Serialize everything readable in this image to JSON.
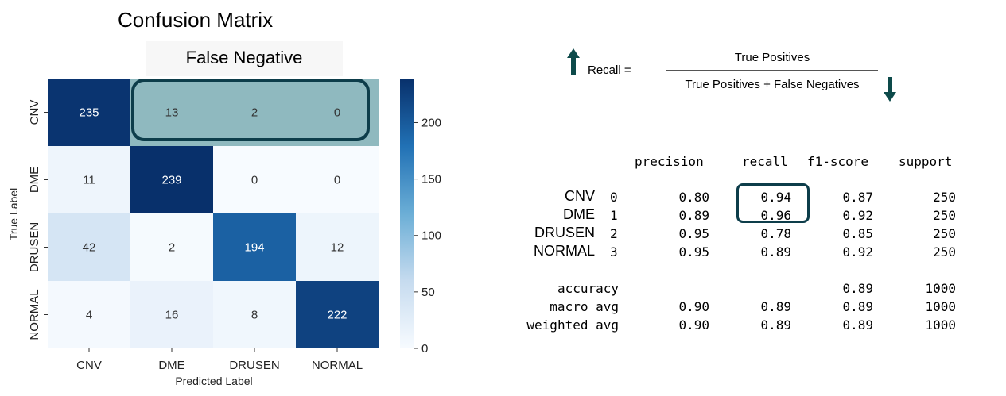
{
  "page": {
    "title": "Confusion Matrix",
    "false_negative_label": "False Negative"
  },
  "formula": {
    "lhs": "Recall =",
    "numerator": "True Positives",
    "denominator": "True Positives + False Negatives"
  },
  "colors": {
    "heatmap_low": "#f7fbff",
    "heatmap_high": "#08306b",
    "highlight_border": "#0d3d4a",
    "highlight_fill": "#8fb9bf",
    "arrow": "#0d4a4a"
  },
  "chart_data": {
    "type": "heatmap",
    "title": "",
    "xlabel": "Predicted Label",
    "ylabel": "True Label",
    "x_categories": [
      "CNV",
      "DME",
      "DRUSEN",
      "NORMAL"
    ],
    "y_categories": [
      "CNV",
      "DME",
      "DRUSEN",
      "NORMAL"
    ],
    "values": [
      [
        235,
        13,
        2,
        0
      ],
      [
        11,
        239,
        0,
        0
      ],
      [
        42,
        2,
        194,
        12
      ],
      [
        4,
        16,
        8,
        222
      ]
    ],
    "colorbar": {
      "min": 0,
      "max": 239,
      "ticks": [
        "0",
        "50",
        "100",
        "150",
        "200"
      ]
    },
    "highlighted_cells": "row CNV, columns DME–NORMAL (false negatives)"
  },
  "report": {
    "headers": [
      "precision",
      "recall",
      "f1-score",
      "support"
    ],
    "class_rows": [
      {
        "name": "CNV",
        "index": "0",
        "precision": "0.80",
        "recall": "0.94",
        "f1": "0.87",
        "support": "250"
      },
      {
        "name": "DME",
        "index": "1",
        "precision": "0.89",
        "recall": "0.96",
        "f1": "0.92",
        "support": "250"
      },
      {
        "name": "DRUSEN",
        "index": "2",
        "precision": "0.95",
        "recall": "0.78",
        "f1": "0.85",
        "support": "250"
      },
      {
        "name": "NORMAL",
        "index": "3",
        "precision": "0.95",
        "recall": "0.89",
        "f1": "0.92",
        "support": "250"
      }
    ],
    "summary_rows": [
      {
        "name": "accuracy",
        "precision": "",
        "recall": "",
        "f1": "0.89",
        "support": "1000"
      },
      {
        "name": "macro avg",
        "precision": "0.90",
        "recall": "0.89",
        "f1": "0.89",
        "support": "1000"
      },
      {
        "name": "weighted avg",
        "precision": "0.90",
        "recall": "0.89",
        "f1": "0.89",
        "support": "1000"
      }
    ],
    "highlighted": "recall values for CNV and DME"
  }
}
